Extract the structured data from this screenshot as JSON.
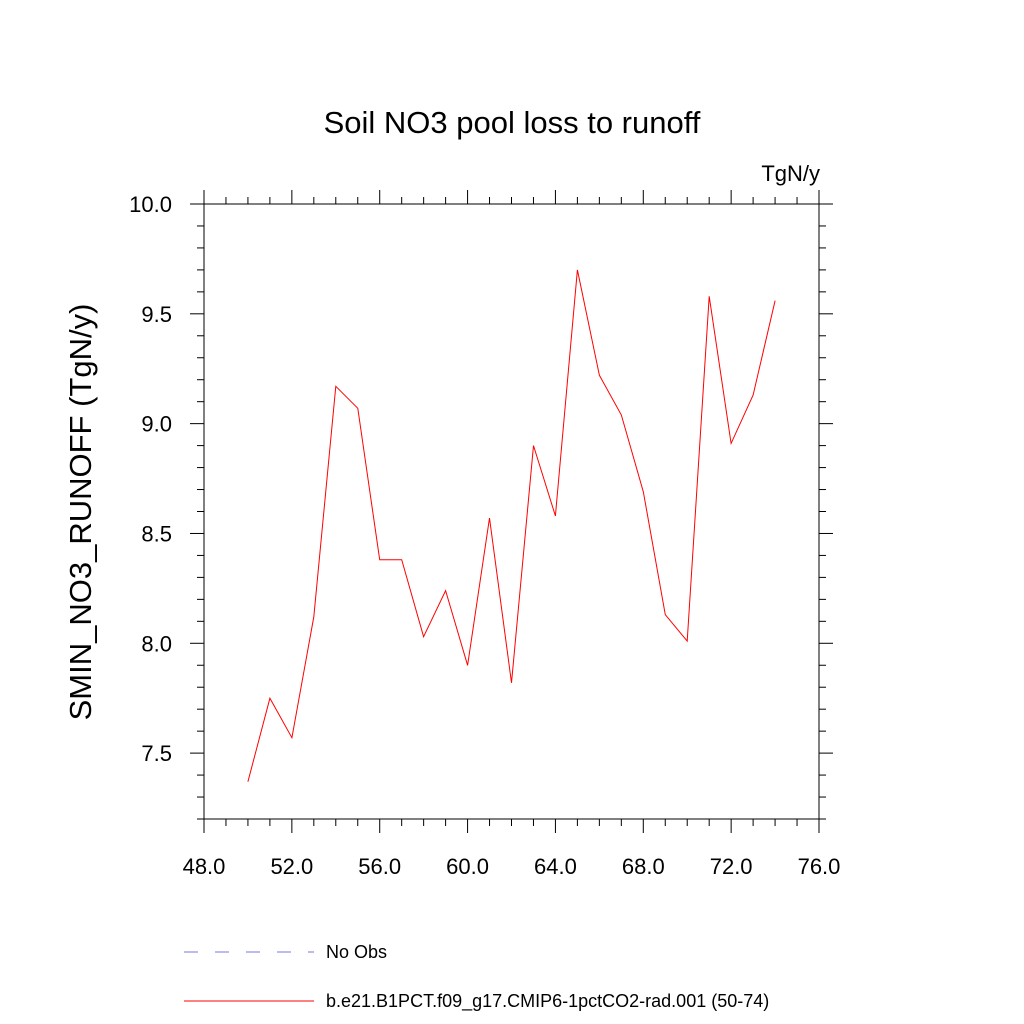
{
  "chart_data": {
    "type": "line",
    "title": "Soil NO3 pool loss to runoff",
    "units_label": "TgN/y",
    "ylabel": "SMIN_NO3_RUNOFF  (TgN/y)",
    "xlabel": "",
    "xlim": [
      48.0,
      76.0
    ],
    "ylim": [
      7.2,
      10.0
    ],
    "x_ticks": [
      48.0,
      52.0,
      56.0,
      60.0,
      64.0,
      68.0,
      72.0,
      76.0
    ],
    "x_tick_labels": [
      "48.0",
      "52.0",
      "56.0",
      "60.0",
      "64.0",
      "68.0",
      "72.0",
      "76.0"
    ],
    "y_ticks": [
      7.5,
      8.0,
      8.5,
      9.0,
      9.5,
      10.0
    ],
    "y_tick_labels": [
      "7.5",
      "8.0",
      "8.5",
      "9.0",
      "9.5",
      "10.0"
    ],
    "grid": false,
    "legend_position": "bottom",
    "series": [
      {
        "name": "b.e21.B1PCT.f09_g17.CMIP6-1pctCO2-rad.001 (50-74)",
        "color": "#ff0000",
        "style": "solid",
        "x": [
          50,
          51,
          52,
          53,
          54,
          55,
          56,
          57,
          58,
          59,
          60,
          61,
          62,
          63,
          64,
          65,
          66,
          67,
          68,
          69,
          70,
          71,
          72,
          73,
          74
        ],
        "y": [
          7.37,
          7.75,
          7.57,
          8.12,
          9.17,
          9.07,
          8.38,
          8.38,
          8.03,
          8.24,
          7.9,
          8.57,
          7.82,
          8.9,
          8.58,
          9.7,
          9.22,
          9.04,
          8.69,
          8.13,
          8.01,
          9.58,
          8.91,
          9.13,
          9.56
        ]
      }
    ],
    "legend": [
      {
        "label": "No Obs",
        "color": "#7777dd",
        "style": "dashed"
      },
      {
        "label": "b.e21.B1PCT.f09_g17.CMIP6-1pctCO2-rad.001 (50-74)",
        "color": "#ff0000",
        "style": "solid"
      }
    ]
  }
}
